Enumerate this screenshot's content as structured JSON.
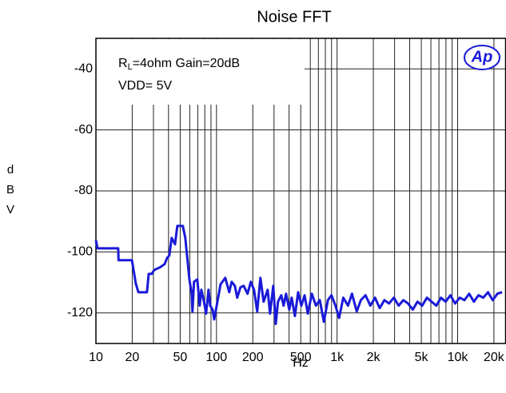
{
  "chart_data": {
    "type": "line",
    "title": "Noise FFT",
    "xlabel": "Hz",
    "ylabel": "dBV",
    "annotation_line1": [
      "R",
      "L",
      "=4ohm Gain=20dB"
    ],
    "annotation_line2": "VDD= 5V",
    "logo": "Ap",
    "xscale": "log",
    "grid": true,
    "xlim": [
      10,
      25000
    ],
    "ylim": [
      -130,
      -30
    ],
    "xticks": [
      10,
      20,
      50,
      100,
      200,
      500,
      {
        "value": 1000,
        "label": "1k"
      },
      {
        "value": 2000,
        "label": "2k"
      },
      {
        "value": 5000,
        "label": "5k"
      },
      {
        "value": 10000,
        "label": "10k"
      },
      {
        "value": 20000,
        "label": "20k"
      }
    ],
    "xminorticks": [
      30,
      40,
      60,
      70,
      80,
      90,
      300,
      400,
      600,
      700,
      800,
      900,
      3000,
      4000,
      6000,
      7000,
      8000,
      9000
    ],
    "yticks": [
      -40,
      -60,
      -80,
      -100,
      -120
    ],
    "x": [
      10,
      10.3,
      15.3,
      15.4,
      19.9,
      21.4,
      22.5,
      26.5,
      27.4,
      29,
      30.5,
      33.8,
      37.1,
      38.9,
      40.6,
      42.5,
      45.3,
      47.3,
      52.6,
      55.1,
      57.7,
      59.6,
      62.3,
      63.2,
      65.1,
      69.3,
      72.6,
      74.9,
      78.3,
      82,
      85.9,
      88.6,
      92.8,
      95.7,
      101.8,
      108.1,
      118.3,
      127.6,
      133.5,
      142,
      148.6,
      158,
      167.9,
      181,
      192.5,
      204.7,
      217.6,
      231.4,
      246,
      265.7,
      278.1,
      295.7,
      310,
      323.6,
      344.4,
      360.4,
      377.6,
      401.4,
      420.3,
      447,
      475.4,
      505.6,
      537.7,
      571.8,
      617.8,
      668,
      719.4,
      777,
      840,
      899,
      970,
      1040,
      1126,
      1233,
      1330,
      1456,
      1575,
      1722,
      1889,
      2064,
      2256,
      2470,
      2700,
      2960,
      3242,
      3547,
      3880,
      4247,
      4646,
      5083,
      5560,
      6082,
      6653,
      7278,
      7962,
      8710,
      9528,
      10420,
      11400,
      12470,
      13640,
      14920,
      16330,
      17860,
      19540,
      21370,
      23380
    ],
    "series": [
      {
        "color": "#1a1ad8",
        "values": [
          -96.2,
          -98.8,
          -98.8,
          -102.7,
          -102.7,
          -110.3,
          -113.2,
          -113.2,
          -107.2,
          -107.2,
          -105.9,
          -105.1,
          -104,
          -102,
          -101.2,
          -95.4,
          -97.5,
          -91.5,
          -91.5,
          -95.4,
          -103.3,
          -109,
          -113.7,
          -119.5,
          -109.8,
          -109,
          -117.6,
          -112.4,
          -115.8,
          -120.2,
          -112.4,
          -117.6,
          -118.9,
          -122.1,
          -116.3,
          -110.6,
          -108.5,
          -113.2,
          -109.8,
          -111.1,
          -115,
          -111.6,
          -111.1,
          -113.7,
          -109.8,
          -112.4,
          -119.5,
          -108.5,
          -116.3,
          -112.4,
          -120.2,
          -111.1,
          -123.6,
          -116.3,
          -114.2,
          -117.6,
          -113.7,
          -118.9,
          -115,
          -121,
          -113.2,
          -117.6,
          -114.2,
          -120.2,
          -113.7,
          -117.6,
          -115.8,
          -122.9,
          -115.8,
          -114.2,
          -117.6,
          -121.6,
          -115,
          -117.6,
          -113.7,
          -119.5,
          -115.8,
          -114.2,
          -117.6,
          -115,
          -118.4,
          -115.8,
          -116.9,
          -115,
          -117.6,
          -115.8,
          -116.9,
          -118.9,
          -116.3,
          -117.6,
          -115,
          -116.3,
          -117.6,
          -115,
          -116.3,
          -114.2,
          -116.9,
          -115,
          -115.8,
          -113.7,
          -116.3,
          -114.2,
          -115,
          -113.2,
          -115.8,
          -113.7,
          -113.2
        ]
      }
    ]
  }
}
